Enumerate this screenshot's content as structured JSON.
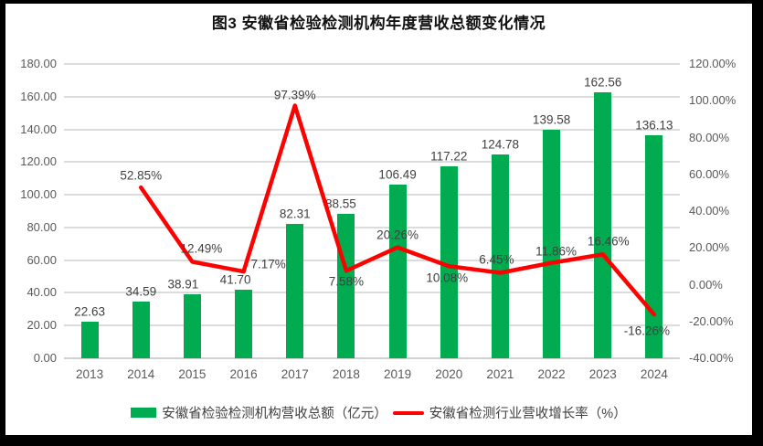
{
  "colors": {
    "frame": "#000000",
    "background": "#ffffff",
    "bar": "#00AC4F",
    "line": "#FE0000",
    "gridline": "#dcdcdc",
    "axis_text": "#595959",
    "data_label_text": "#404040",
    "title_text": "#111111"
  },
  "chart_data": {
    "type": "combo-bar-line",
    "title": "图3 安徽省检验检测机构年度营收总额变化情况",
    "categories": [
      "2013",
      "2014",
      "2015",
      "2016",
      "2017",
      "2018",
      "2019",
      "2020",
      "2021",
      "2022",
      "2023",
      "2024"
    ],
    "series": [
      {
        "name": "安徽省检验检测机构营收总额（亿元）",
        "type": "bar",
        "color": "#00AC4F",
        "axis": "left",
        "values": [
          22.63,
          34.59,
          38.91,
          41.7,
          82.31,
          88.55,
          106.49,
          117.22,
          124.78,
          139.58,
          162.56,
          136.13
        ],
        "labels": [
          "22.63",
          "34.59",
          "38.91",
          "41.70",
          "82.31",
          "88.55",
          "106.49",
          "117.22",
          "124.78",
          "139.58",
          "162.56",
          "136.13"
        ]
      },
      {
        "name": "安徽省检测行业营收增长率（%）",
        "type": "line",
        "color": "#FE0000",
        "axis": "right",
        "values": [
          null,
          52.85,
          12.49,
          7.17,
          97.39,
          7.58,
          20.26,
          10.08,
          6.45,
          11.86,
          16.46,
          -16.26
        ],
        "labels": [
          null,
          "52.85%",
          "12.49%",
          "7.17%",
          "97.39%",
          "7.58%",
          "20.26%",
          "10.08%",
          "6.45%",
          "11.86%",
          "16.46%",
          "-16.26%"
        ]
      }
    ],
    "left_axis": {
      "min": 0,
      "max": 180,
      "step": 20,
      "tick_labels": [
        "180.00",
        "160.00",
        "140.00",
        "120.00",
        "100.00",
        "80.00",
        "60.00",
        "40.00",
        "20.00",
        "0.00"
      ]
    },
    "right_axis": {
      "min": -40,
      "max": 120,
      "step": 20,
      "tick_labels": [
        "120.00%",
        "100.00%",
        "80.00%",
        "60.00%",
        "40.00%",
        "20.00%",
        "0.00%",
        "-20.00%",
        "-40.00%"
      ]
    },
    "grid": true,
    "legend_position": "bottom"
  }
}
